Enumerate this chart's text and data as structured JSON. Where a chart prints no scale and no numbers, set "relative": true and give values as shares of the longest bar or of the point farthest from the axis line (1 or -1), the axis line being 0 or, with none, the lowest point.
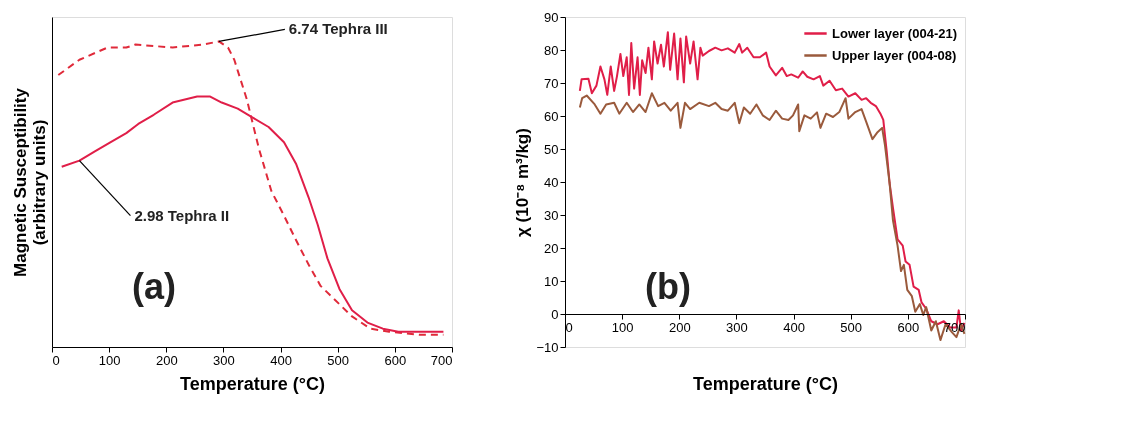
{
  "chart_data": [
    {
      "type": "line",
      "xlabel": "Temperature (°C)",
      "ylabel": "Magnetic Susceptibility\n(arbitrary units)",
      "relative": true,
      "marker": "none",
      "grid": false,
      "legend": false,
      "xlim": [
        0,
        700
      ],
      "xticks": [
        0,
        100,
        200,
        300,
        400,
        500,
        600,
        700
      ],
      "series": [
        {
          "color": "#e02a3a",
          "line_style": "dashed",
          "x": [
            11,
            48,
            97,
            130,
            146,
            211,
            265,
            292,
            308,
            319,
            341,
            362,
            384,
            406,
            427,
            449,
            470,
            492,
            525,
            557,
            590,
            644,
            685
          ],
          "values": [
            0.89,
            0.94,
            0.98,
            0.98,
            0.99,
            0.98,
            0.99,
            1.0,
            0.98,
            0.94,
            0.81,
            0.65,
            0.51,
            0.43,
            0.35,
            0.27,
            0.2,
            0.16,
            0.1,
            0.06,
            0.05,
            0.04,
            0.04
          ]
        },
        {
          "color": "#e01e48",
          "line_style": "solid",
          "x": [
            17,
            48,
            75,
            102,
            130,
            151,
            178,
            211,
            254,
            276,
            297,
            325,
            352,
            379,
            406,
            427,
            449,
            465,
            482,
            503,
            525,
            552,
            579,
            606,
            639,
            685
          ],
          "values": [
            0.59,
            0.61,
            0.64,
            0.67,
            0.7,
            0.73,
            0.76,
            0.8,
            0.82,
            0.82,
            0.8,
            0.78,
            0.75,
            0.72,
            0.67,
            0.6,
            0.49,
            0.4,
            0.29,
            0.19,
            0.12,
            0.08,
            0.06,
            0.05,
            0.05,
            0.05
          ]
        }
      ],
      "annotations": [
        {
          "text": "6.74 Tephra III",
          "x": 292,
          "y": 1.0
        },
        {
          "text": "2.98 Tephra II",
          "x": 48,
          "y": 0.61
        },
        "(a)"
      ]
    },
    {
      "type": "line",
      "xlabel": "Temperature (°C)",
      "ylabel": "χ (10⁻⁸ m³/kg)",
      "marker": "none",
      "grid": false,
      "legend": "top right",
      "xlim": [
        0,
        700
      ],
      "xticks": [
        0,
        100,
        200,
        300,
        400,
        500,
        600,
        700
      ],
      "ylim": [
        -10,
        90
      ],
      "yticks": [
        -10,
        0,
        10,
        20,
        30,
        40,
        50,
        60,
        70,
        80,
        90
      ],
      "series": [
        {
          "name": "Lower  layer (004-21)",
          "color": "#e01e48",
          "x": [
            26,
            29,
            41,
            47,
            55,
            62,
            69,
            74,
            80,
            86,
            91,
            97,
            102,
            108,
            112,
            116,
            121,
            127,
            131,
            135,
            141,
            146,
            152,
            156,
            162,
            168,
            173,
            180,
            184,
            191,
            197,
            202,
            208,
            212,
            219,
            225,
            232,
            237,
            241,
            252,
            263,
            274,
            285,
            297,
            305,
            310,
            319,
            330,
            341,
            352,
            358,
            369,
            380,
            388,
            396,
            408,
            416,
            424,
            435,
            446,
            452,
            463,
            474,
            485,
            496,
            508,
            519,
            527,
            535,
            544,
            552,
            557,
            563,
            568,
            574,
            582,
            591,
            596,
            603,
            610,
            619,
            624,
            632,
            641,
            652,
            663,
            674,
            685,
            689,
            693,
            699
          ],
          "values": [
            67.6,
            71.1,
            71.3,
            66.9,
            69.2,
            75,
            71.1,
            66.4,
            75,
            67.6,
            72.1,
            78.8,
            72.1,
            77.8,
            66.4,
            82.1,
            68.3,
            77.8,
            66.4,
            76.9,
            73,
            80.7,
            71.1,
            82.6,
            75.9,
            81.6,
            75,
            85.4,
            74,
            85,
            71.1,
            83.5,
            70.2,
            84.1,
            75.9,
            82.6,
            71.1,
            80.7,
            78.3,
            79.7,
            80.7,
            79.9,
            80.5,
            79.2,
            81.8,
            79.2,
            80.7,
            77.8,
            77.8,
            79.2,
            75,
            72.3,
            74.6,
            72.1,
            72.6,
            71.6,
            73.5,
            71.9,
            71.1,
            72.1,
            69.2,
            70.7,
            67.8,
            68.3,
            65.9,
            66.9,
            64.9,
            65.4,
            64,
            63,
            60.7,
            58.8,
            49.2,
            39.7,
            32.1,
            22.6,
            20.7,
            15.9,
            14.9,
            8.3,
            7.3,
            3.5,
            1.6,
            -2.2,
            -3.1,
            -2.2,
            -4.1,
            -4.1,
            1.1,
            -5,
            -2.7
          ]
        },
        {
          "name": "Upper  layer (004-08)",
          "color": "#9a5a3c",
          "x": [
            26,
            30,
            38,
            52,
            62,
            72,
            86,
            95,
            108,
            119,
            130,
            141,
            152,
            163,
            174,
            185,
            197,
            202,
            210,
            219,
            235,
            252,
            263,
            274,
            285,
            297,
            305,
            313,
            324,
            335,
            346,
            358,
            369,
            380,
            391,
            399,
            408,
            410,
            419,
            430,
            441,
            447,
            457,
            469,
            480,
            491,
            496,
            508,
            519,
            527,
            538,
            546,
            555,
            560,
            568,
            574,
            582,
            588,
            593,
            599,
            607,
            613,
            621,
            627,
            632,
            641,
            649,
            657,
            666,
            677,
            685,
            693,
            699
          ],
          "values": [
            62.6,
            65.4,
            66.2,
            63.5,
            60.7,
            63.5,
            64,
            60.7,
            64,
            61.2,
            63.5,
            61.2,
            66.9,
            63,
            64,
            61.6,
            64,
            56.4,
            64,
            62.1,
            64,
            63,
            64,
            62.1,
            61.6,
            64,
            57.8,
            62.6,
            60.7,
            63.5,
            60.2,
            58.8,
            61.6,
            59.2,
            58.8,
            60.2,
            63.5,
            55.4,
            60.2,
            59.2,
            61.1,
            56.4,
            60.7,
            59.7,
            61.2,
            65.4,
            59.2,
            61.2,
            62.1,
            58.3,
            53,
            54.9,
            56.4,
            51.1,
            39.7,
            28.3,
            20.7,
            13,
            14.9,
            7.3,
            5.4,
            0.7,
            3,
            -0.3,
            2.1,
            -5,
            -2.2,
            -7.9,
            -3.1,
            -5.5,
            -7,
            -3.1,
            -6
          ]
        }
      ],
      "annotations": [
        "(b)"
      ]
    }
  ]
}
